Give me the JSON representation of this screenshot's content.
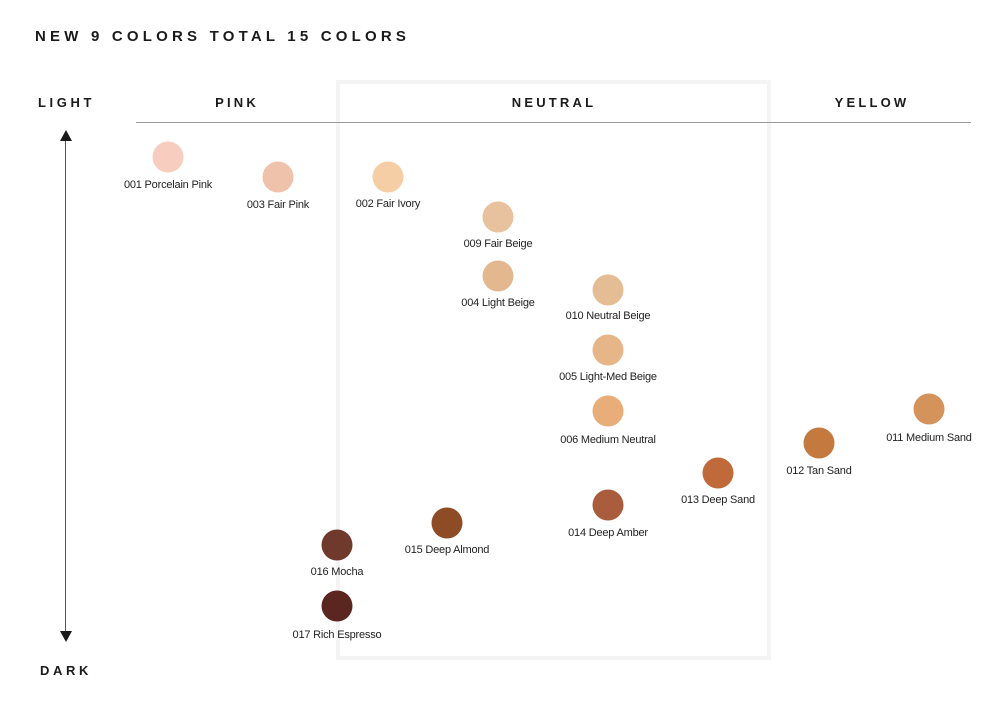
{
  "title": "NEW 9 COLORS TOTAL 15 COLORS",
  "axis": {
    "top_label": "LIGHT",
    "bottom_label": "DARK"
  },
  "categories": [
    {
      "name": "PINK"
    },
    {
      "name": "NEUTRAL"
    },
    {
      "name": "YELLOW"
    }
  ],
  "shades": [
    {
      "label": "001 Porcelain Pink",
      "color": "#f6cdbf",
      "category": "PINK"
    },
    {
      "label": "003 Fair Pink",
      "color": "#efc2ab",
      "category": "PINK"
    },
    {
      "label": "002 Fair Ivory",
      "color": "#f5cea5",
      "category": "NEUTRAL"
    },
    {
      "label": "009 Fair Beige",
      "color": "#e8c19f",
      "category": "NEUTRAL"
    },
    {
      "label": "004 Light Beige",
      "color": "#e4b88f",
      "category": "NEUTRAL"
    },
    {
      "label": "010 Neutral Beige",
      "color": "#e5bd94",
      "category": "NEUTRAL"
    },
    {
      "label": "005 Light-Med Beige",
      "color": "#e6b688",
      "category": "NEUTRAL"
    },
    {
      "label": "006 Medium Neutral",
      "color": "#e9ad7a",
      "category": "NEUTRAL"
    },
    {
      "label": "013 Deep Sand",
      "color": "#c06a3b",
      "category": "NEUTRAL"
    },
    {
      "label": "014 Deep Amber",
      "color": "#a95d3d",
      "category": "NEUTRAL"
    },
    {
      "label": "015 Deep Almond",
      "color": "#8e4c26",
      "category": "NEUTRAL"
    },
    {
      "label": "016 Mocha",
      "color": "#6f3a2b",
      "category": "PINK"
    },
    {
      "label": "017 Rich Espresso",
      "color": "#5c2620",
      "category": "PINK"
    },
    {
      "label": "012 Tan Sand",
      "color": "#c4793f",
      "category": "YELLOW"
    },
    {
      "label": "011 Medium Sand",
      "color": "#d4935a",
      "category": "YELLOW"
    }
  ]
}
